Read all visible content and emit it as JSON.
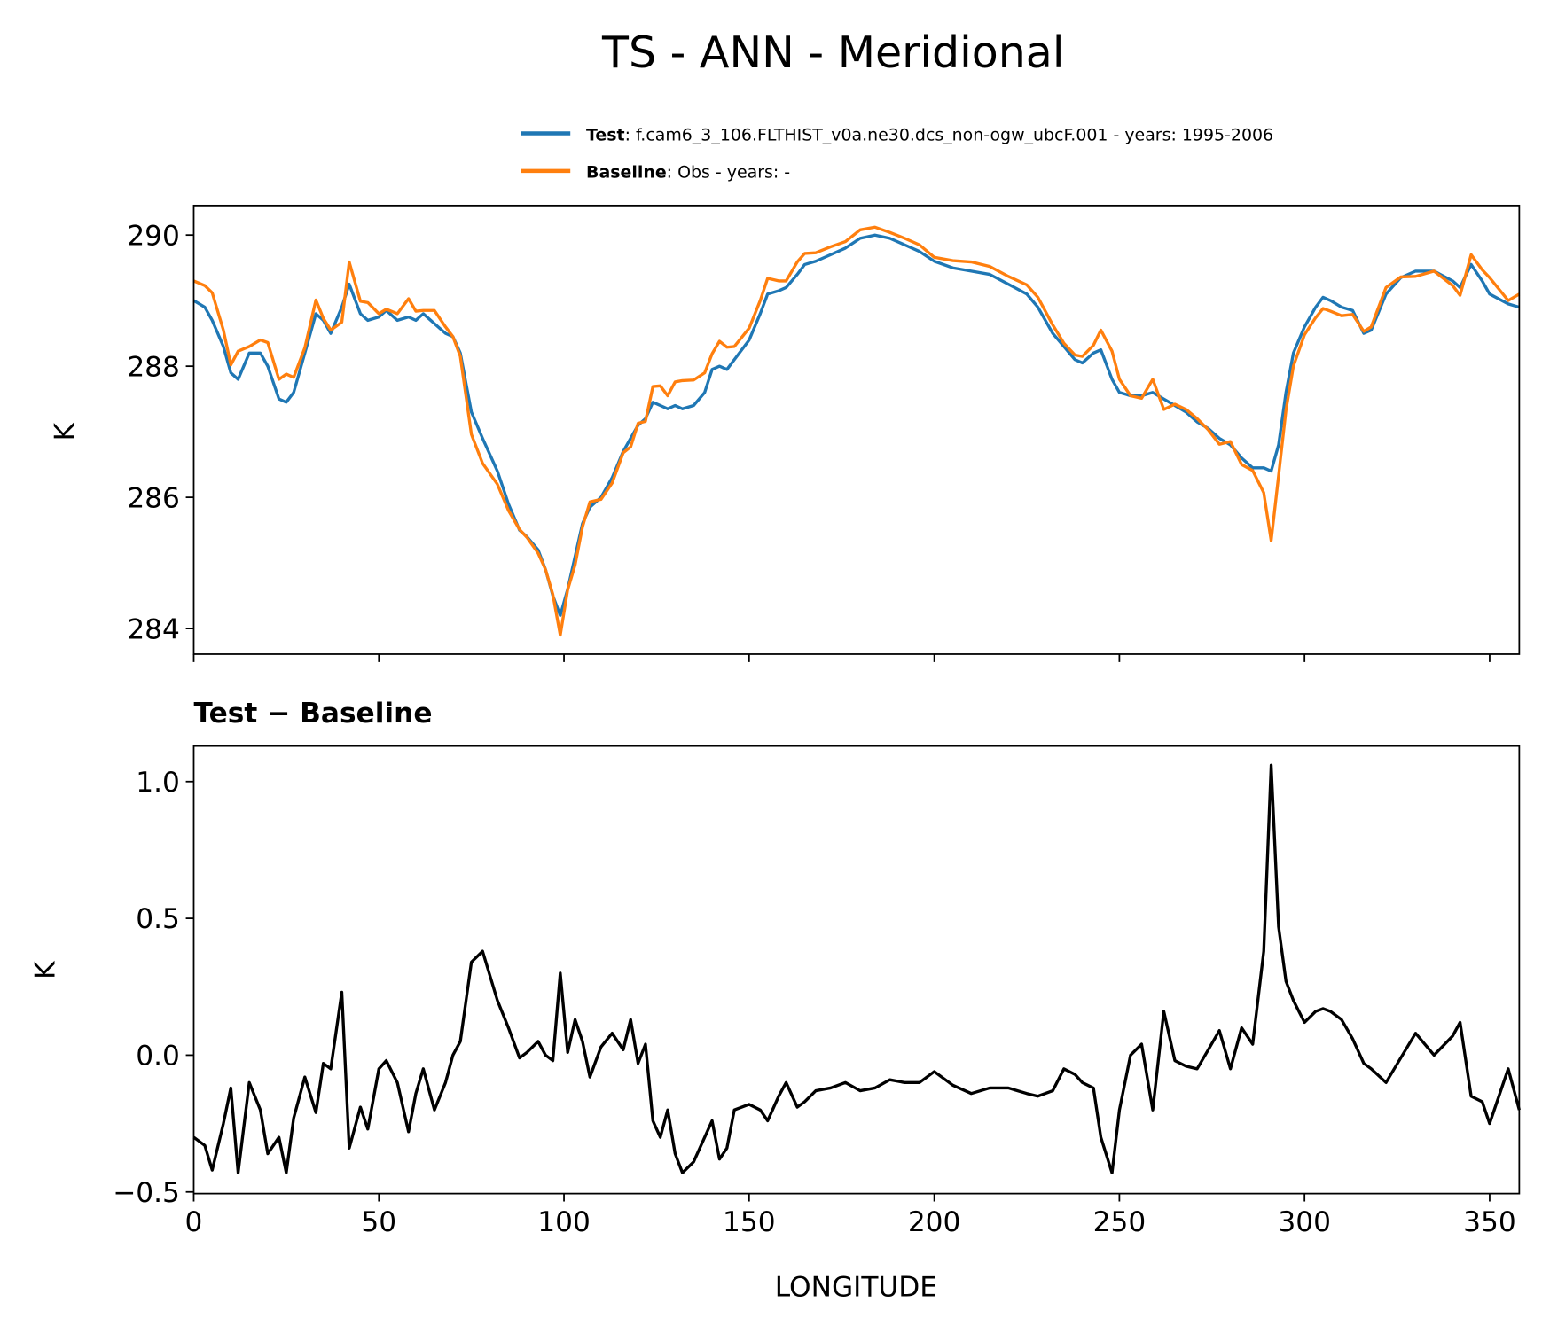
{
  "title": "TS - ANN - Meridional",
  "legend": {
    "test_label": "Test",
    "test_desc": ": f.cam6_3_106.FLTHIST_v0a.ne30.dcs_non-ogw_ubcF.001 - years: 1995-2006",
    "baseline_label": "Baseline",
    "baseline_desc": ": Obs - years: -"
  },
  "colors": {
    "test": "#1f77b4",
    "baseline": "#ff7f0e",
    "difference": "#000000"
  },
  "chart_data": [
    {
      "type": "line",
      "panel": "top",
      "title": "",
      "xlabel": "",
      "ylabel": "K",
      "xlim": [
        0,
        358
      ],
      "ylim": [
        283.61,
        290.45
      ],
      "xticks": [
        0,
        50,
        100,
        150,
        200,
        250,
        300,
        350
      ],
      "yticks": [
        284,
        286,
        288,
        290
      ],
      "legend_position": "above-right",
      "x": [
        0,
        3,
        5,
        8,
        10,
        12,
        15,
        18,
        20,
        23,
        25,
        27,
        30,
        33,
        35,
        37,
        40,
        42,
        45,
        47,
        50,
        52,
        55,
        58,
        60,
        62,
        65,
        68,
        70,
        72,
        75,
        78,
        82,
        85,
        88,
        90,
        93,
        95,
        97,
        99,
        101,
        103,
        105,
        107,
        110,
        113,
        116,
        118,
        120,
        122,
        124,
        126,
        128,
        130,
        132,
        135,
        138,
        140,
        142,
        144,
        146,
        150,
        153,
        155,
        158,
        160,
        163,
        165,
        168,
        172,
        176,
        180,
        184,
        188,
        192,
        196,
        200,
        205,
        210,
        215,
        220,
        225,
        228,
        232,
        235,
        238,
        240,
        243,
        245,
        248,
        250,
        253,
        256,
        259,
        262,
        265,
        268,
        271,
        274,
        277,
        280,
        283,
        286,
        289,
        291,
        293,
        295,
        297,
        300,
        303,
        305,
        307,
        310,
        313,
        316,
        318,
        322,
        326,
        330,
        335,
        340,
        342,
        345,
        348,
        350,
        355,
        358
      ],
      "series": [
        {
          "name": "Test",
          "values": [
            289.0,
            288.9,
            288.7,
            288.3,
            287.9,
            287.8,
            288.2,
            288.2,
            288.0,
            287.5,
            287.45,
            287.6,
            288.2,
            288.8,
            288.7,
            288.5,
            288.9,
            289.25,
            288.8,
            288.7,
            288.75,
            288.85,
            288.7,
            288.75,
            288.7,
            288.8,
            288.65,
            288.5,
            288.45,
            288.2,
            287.3,
            286.9,
            286.4,
            285.9,
            285.5,
            285.4,
            285.2,
            284.9,
            284.5,
            284.2,
            284.6,
            285.1,
            285.6,
            285.85,
            286.0,
            286.3,
            286.7,
            286.9,
            287.1,
            287.2,
            287.45,
            287.4,
            287.35,
            287.4,
            287.35,
            287.4,
            287.6,
            287.95,
            288.0,
            287.95,
            288.1,
            288.4,
            288.8,
            289.1,
            289.15,
            289.2,
            289.4,
            289.55,
            289.6,
            289.7,
            289.8,
            289.95,
            290.0,
            289.95,
            289.85,
            289.75,
            289.6,
            289.5,
            289.45,
            289.4,
            289.25,
            289.1,
            288.9,
            288.5,
            288.3,
            288.1,
            288.05,
            288.2,
            288.25,
            287.8,
            287.6,
            287.55,
            287.55,
            287.6,
            287.5,
            287.4,
            287.3,
            287.15,
            287.05,
            286.9,
            286.8,
            286.6,
            286.45,
            286.45,
            286.4,
            286.8,
            287.6,
            288.2,
            288.6,
            288.9,
            289.05,
            289.0,
            288.9,
            288.85,
            288.5,
            288.55,
            289.1,
            289.35,
            289.45,
            289.45,
            289.3,
            289.2,
            289.55,
            289.3,
            289.1,
            288.95,
            288.9
          ]
        },
        {
          "name": "Baseline",
          "derived_from": "Test - (Test - Baseline)"
        }
      ]
    },
    {
      "type": "line",
      "panel": "bottom",
      "title": "Test − Baseline",
      "xlabel": "LONGITUDE",
      "ylabel": "K",
      "xlim": [
        0,
        358
      ],
      "ylim": [
        -0.506,
        1.13
      ],
      "xticks": [
        0,
        50,
        100,
        150,
        200,
        250,
        300,
        350
      ],
      "xtick_labels": [
        "0",
        "50",
        "100",
        "150",
        "200",
        "250",
        "300",
        "350"
      ],
      "yticks": [
        -0.5,
        0.0,
        0.5,
        1.0
      ],
      "ytick_labels": [
        "−0.5",
        "0.0",
        "0.5",
        "1.0"
      ],
      "series": [
        {
          "name": "Test − Baseline",
          "values": [
            -0.3,
            -0.33,
            -0.42,
            -0.25,
            -0.12,
            -0.43,
            -0.1,
            -0.2,
            -0.36,
            -0.3,
            -0.43,
            -0.23,
            -0.08,
            -0.21,
            -0.03,
            -0.05,
            0.23,
            -0.34,
            -0.19,
            -0.27,
            -0.05,
            -0.02,
            -0.1,
            -0.28,
            -0.14,
            -0.05,
            -0.2,
            -0.1,
            0.0,
            0.05,
            0.34,
            0.38,
            0.2,
            0.1,
            -0.01,
            0.01,
            0.05,
            0.0,
            -0.02,
            0.3,
            0.01,
            0.13,
            0.05,
            -0.08,
            0.03,
            0.08,
            0.02,
            0.13,
            -0.03,
            0.04,
            -0.24,
            -0.3,
            -0.2,
            -0.36,
            -0.43,
            -0.39,
            -0.3,
            -0.24,
            -0.38,
            -0.34,
            -0.2,
            -0.18,
            -0.2,
            -0.24,
            -0.15,
            -0.1,
            -0.19,
            -0.17,
            -0.13,
            -0.12,
            -0.1,
            -0.13,
            -0.12,
            -0.09,
            -0.1,
            -0.1,
            -0.06,
            -0.11,
            -0.14,
            -0.12,
            -0.12,
            -0.14,
            -0.15,
            -0.13,
            -0.05,
            -0.07,
            -0.1,
            -0.12,
            -0.3,
            -0.43,
            -0.2,
            0.0,
            0.04,
            -0.2,
            0.16,
            -0.02,
            -0.04,
            -0.05,
            0.02,
            0.09,
            -0.05,
            0.1,
            0.04,
            0.38,
            1.06,
            0.47,
            0.27,
            0.2,
            0.12,
            0.16,
            0.17,
            0.16,
            0.13,
            0.06,
            -0.03,
            -0.05,
            -0.1,
            -0.01,
            0.08,
            0.0,
            0.07,
            0.12,
            -0.15,
            -0.17,
            -0.25,
            -0.05,
            -0.2
          ]
        }
      ]
    }
  ]
}
